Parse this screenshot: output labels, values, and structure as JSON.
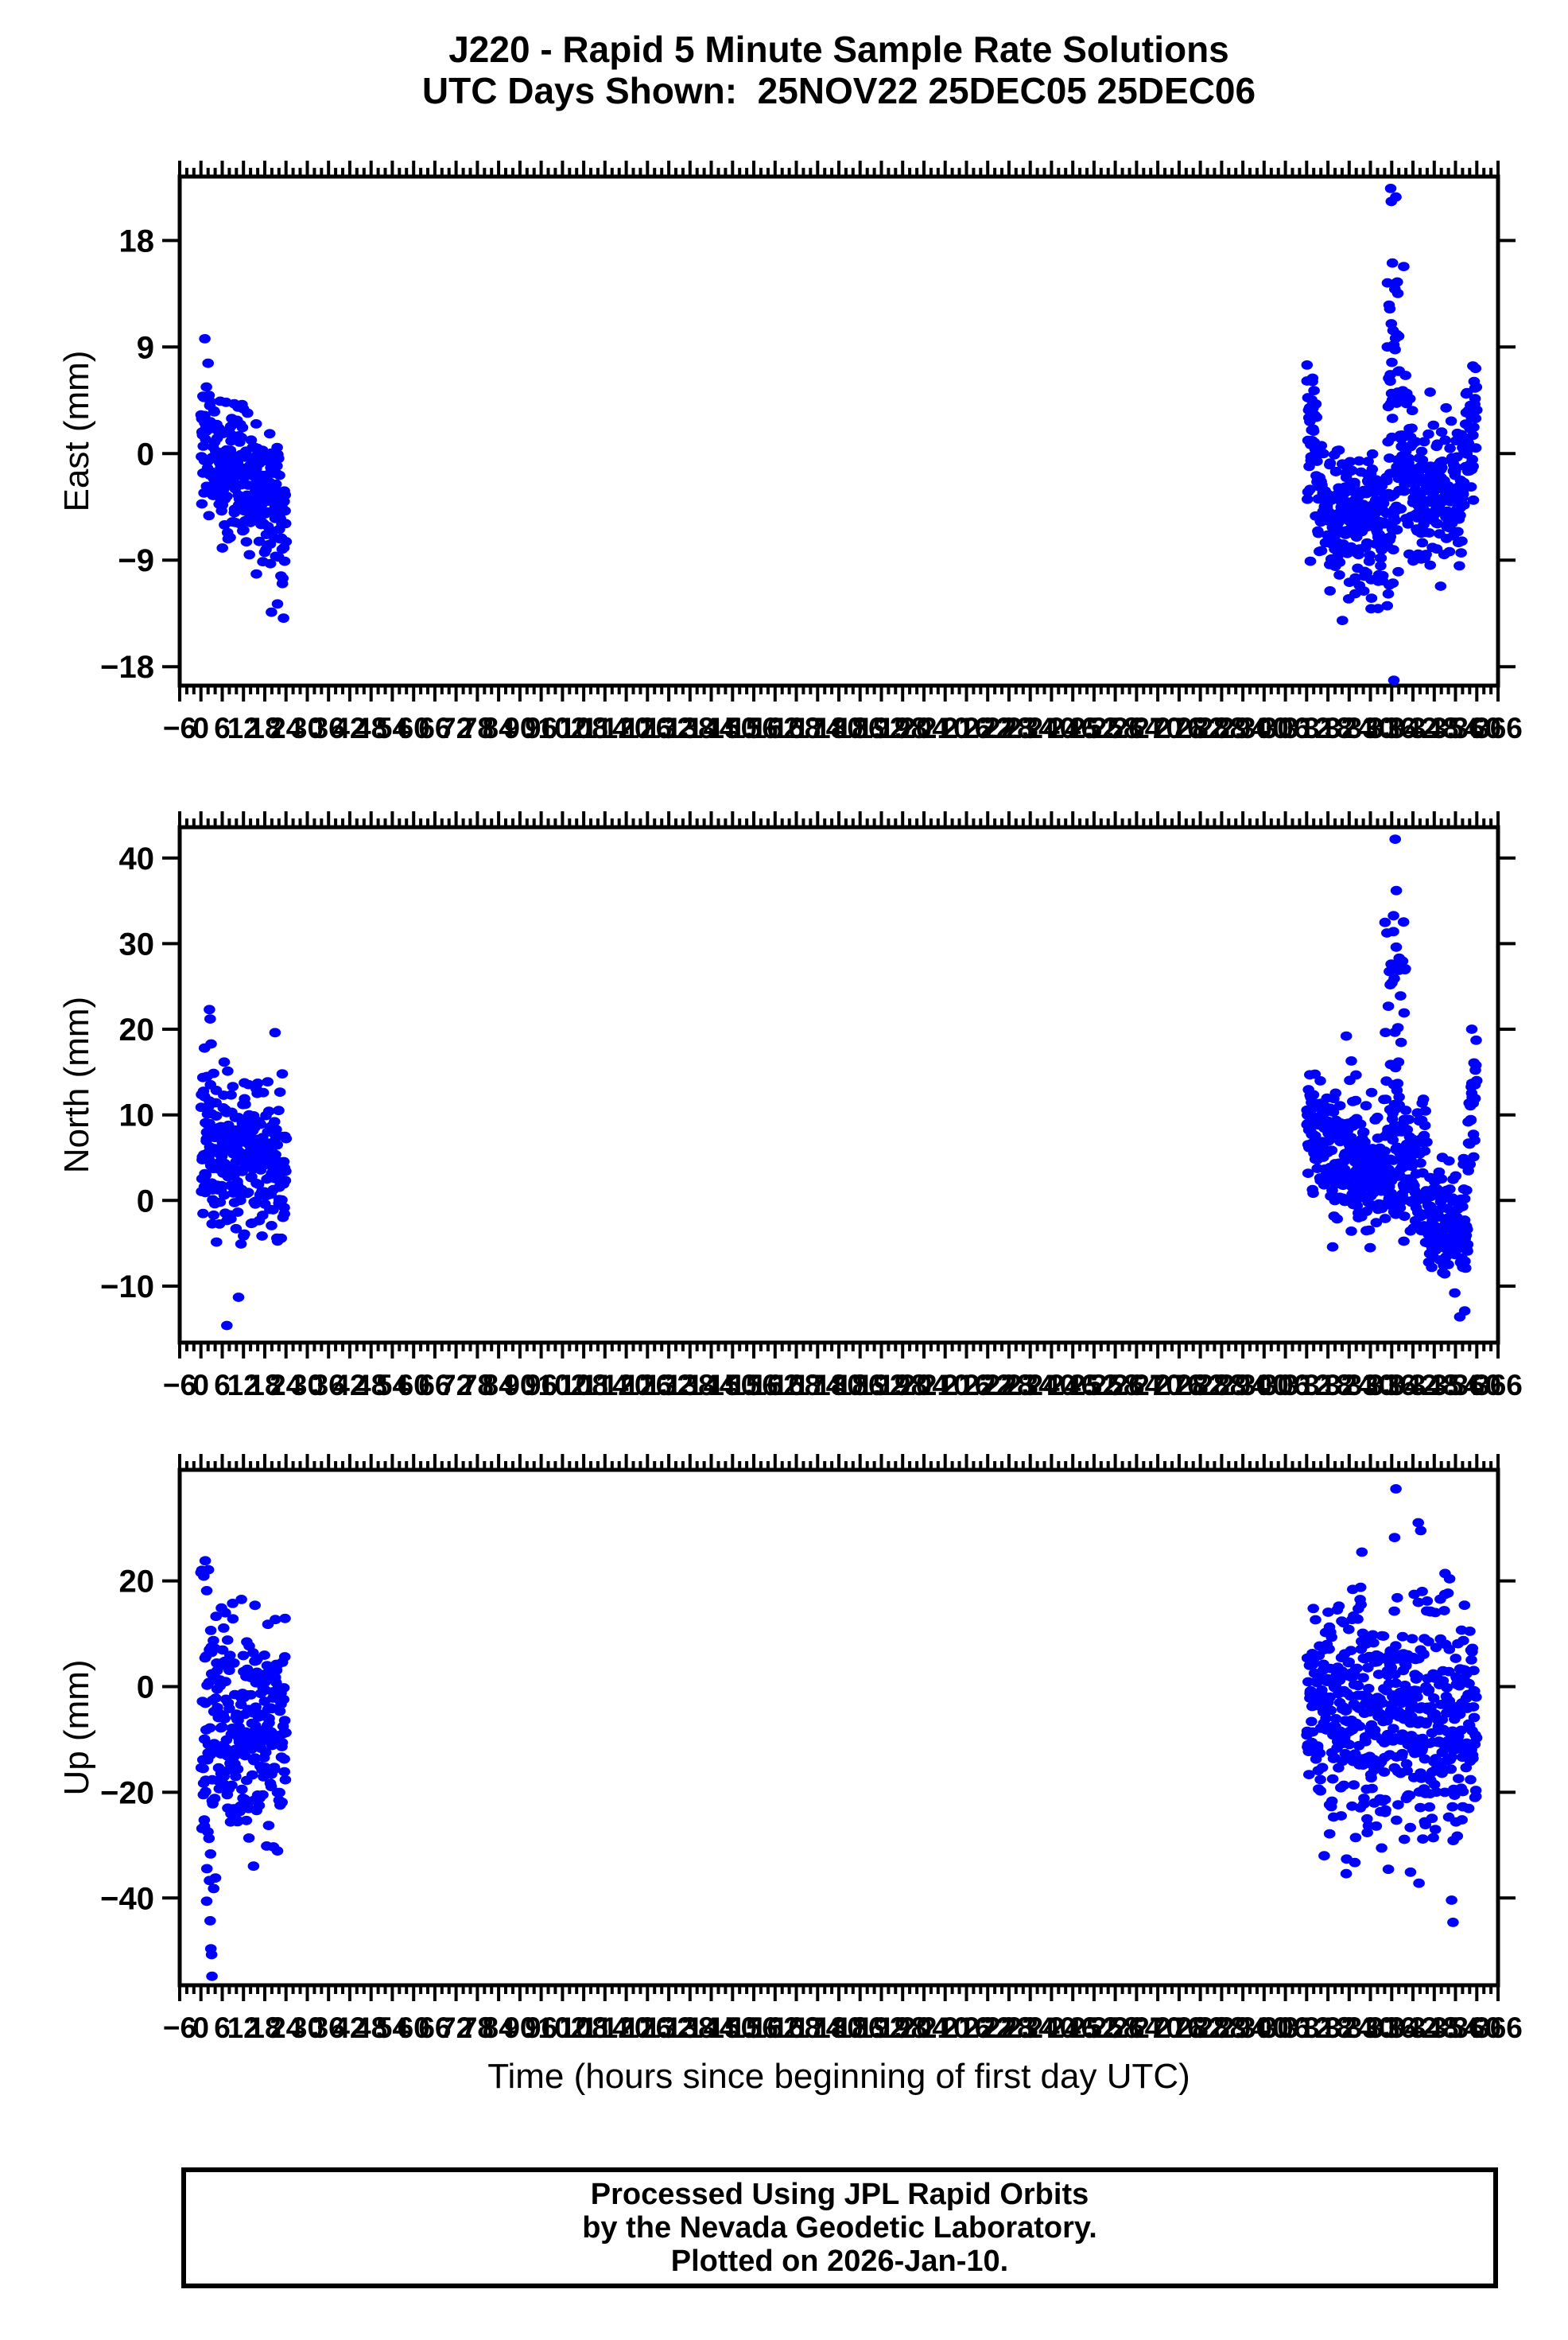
{
  "header": {
    "title_line1": "J220 - Rapid 5 Minute Sample Rate Solutions",
    "title_line2": "UTC Days Shown:  25NOV22 25DEC05 25DEC06"
  },
  "footer": {
    "line1": "Processed Using JPL Rapid Orbits",
    "line2": "by the Nevada Geodetic Laboratory.",
    "line3": "Plotted on 2026-Jan-10."
  },
  "chart_data": {
    "type": "scatter",
    "title": "J220 - Rapid 5 Minute Sample Rate Solutions",
    "subtitle": "UTC Days Shown:  25NOV22 25DEC05 25DEC06",
    "grid": false,
    "legend": "none",
    "x_axis": {
      "title": "Time (hours since beginning of first day UTC)",
      "min": -6,
      "max": 366,
      "label_step": 6,
      "major_tick_step": 6,
      "minor_tick_step": 2
    },
    "marker": {
      "color": "#0000ff",
      "rx": 7.3,
      "ry": 5.9
    },
    "sample_rate_per_hour": 12,
    "day_windows_hours": [
      [
        0,
        24
      ],
      [
        312,
        336
      ],
      [
        336,
        360
      ]
    ],
    "plots": [
      {
        "id": "east",
        "ylabel": "East (mm)",
        "ylim": [
          -19.6,
          23.4
        ],
        "yticks": [
          -18,
          -9,
          0,
          9,
          18
        ],
        "segments": [
          {
            "t0": 0,
            "t1": 24,
            "rate": 12,
            "mean0": 1.5,
            "mean1": -5.5,
            "std": 2.8
          },
          {
            "t0": 312,
            "t1": 315,
            "rate": 12,
            "mean0": 2.0,
            "mean1": 0.0,
            "std": 3.2
          },
          {
            "t0": 315,
            "t1": 334,
            "rate": 12,
            "mean0": -4.5,
            "mean1": -5.5,
            "std": 2.9
          },
          {
            "t0": 334.5,
            "t1": 338,
            "rate": 10,
            "mean0": 6,
            "mean1": 13,
            "std": 5.0
          },
          {
            "t0": 334.5,
            "t1": 338,
            "rate": 8,
            "mean0": -6,
            "mean1": -4,
            "std": 3.0
          },
          {
            "t0": 338,
            "t1": 342,
            "rate": 12,
            "mean0": 1,
            "mean1": -2,
            "std": 3.4
          },
          {
            "t0": 342,
            "t1": 356,
            "rate": 12,
            "mean0": -3.8,
            "mean1": -3.2,
            "std": 2.8
          },
          {
            "t0": 356,
            "t1": 360,
            "rate": 12,
            "mean0": 0,
            "mean1": 2.5,
            "std": 2.6
          }
        ],
        "outliers": [
          [
            1.1,
            9.7
          ],
          [
            19.9,
            -13.4
          ],
          [
            21.6,
            -12.7
          ],
          [
            23.3,
            -13.9
          ],
          [
            322.1,
            -14.1
          ],
          [
            318.6,
            -11.6
          ],
          [
            330.2,
            -13.1
          ],
          [
            335.7,
            22.4
          ],
          [
            335.9,
            21.3
          ],
          [
            336.2,
            16.1
          ],
          [
            339.4,
            15.8
          ],
          [
            336.6,
            -19.2
          ],
          [
            349.8,
            -11.2
          ],
          [
            358.9,
            7.4
          ]
        ]
      },
      {
        "id": "north",
        "ylabel": "North (mm)",
        "ylim": [
          -16.6,
          43.6
        ],
        "yticks": [
          -10,
          0,
          10,
          20,
          30,
          40
        ],
        "segments": [
          {
            "t0": 0,
            "t1": 24,
            "rate": 12,
            "mean0": 6.5,
            "mean1": 3.5,
            "std": 4.3
          },
          {
            "t0": 312,
            "t1": 318,
            "rate": 12,
            "mean0": 8.5,
            "mean1": 6.5,
            "std": 3.6
          },
          {
            "t0": 318,
            "t1": 336,
            "rate": 12,
            "mean0": 5.5,
            "mean1": 3.0,
            "std": 3.6
          },
          {
            "t0": 334,
            "t1": 340,
            "rate": 5,
            "mean0": 18,
            "mean1": 28,
            "std": 6.5
          },
          {
            "t0": 336,
            "t1": 346,
            "rate": 12,
            "mean0": 6,
            "mean1": 1,
            "std": 4.2
          },
          {
            "t0": 346,
            "t1": 357.5,
            "rate": 12,
            "mean0": -2.2,
            "mean1": -3.5,
            "std": 3.1
          },
          {
            "t0": 357.5,
            "t1": 360,
            "rate": 10,
            "mean0": 8,
            "mean1": 14,
            "std": 3.5
          }
        ],
        "outliers": [
          [
            2.4,
            22.3
          ],
          [
            2.6,
            21.2
          ],
          [
            1.0,
            17.8
          ],
          [
            7.3,
            -14.6
          ],
          [
            10.6,
            -11.3
          ],
          [
            20.9,
            19.6
          ],
          [
            323.2,
            19.2
          ],
          [
            324.6,
            16.3
          ],
          [
            337.0,
            42.2
          ],
          [
            337.3,
            36.2
          ],
          [
            336.5,
            31.4
          ],
          [
            338.1,
            28.3
          ],
          [
            335.6,
            25.2
          ],
          [
            355.2,
            -13.6
          ],
          [
            356.6,
            -12.9
          ],
          [
            358.6,
            20.0
          ],
          [
            353.8,
            -10.8
          ]
        ]
      },
      {
        "id": "up",
        "ylabel": "Up (mm)",
        "ylim": [
          -56.5,
          41.0
        ],
        "yticks": [
          -40,
          -20,
          0,
          20
        ],
        "segments": [
          {
            "t0": 0,
            "t1": 3.5,
            "rate": 12,
            "mean0": -8,
            "mean1": -12,
            "std": 16
          },
          {
            "t0": 3.5,
            "t1": 24,
            "rate": 12,
            "mean0": -7,
            "mean1": -9,
            "std": 10.5
          },
          {
            "t0": 312,
            "t1": 336,
            "rate": 12,
            "mean0": -4.5,
            "mean1": -6,
            "std": 11.5
          },
          {
            "t0": 336,
            "t1": 360,
            "rate": 12,
            "mean0": -5,
            "mean1": -7,
            "std": 11.5
          }
        ],
        "outliers": [
          [
            1.2,
            23.8
          ],
          [
            2.1,
            22.1
          ],
          [
            0.8,
            20.9
          ],
          [
            1.6,
            -40.6
          ],
          [
            2.6,
            -44.3
          ],
          [
            2.8,
            -49.6
          ],
          [
            3.0,
            -50.7
          ],
          [
            3.1,
            -54.8
          ],
          [
            4.1,
            -36.2
          ],
          [
            337.2,
            37.4
          ],
          [
            336.8,
            28.2
          ],
          [
            343.5,
            31.0
          ],
          [
            344.2,
            29.5
          ],
          [
            341.3,
            -35.1
          ],
          [
            352.9,
            -40.4
          ],
          [
            353.3,
            -44.6
          ]
        ]
      }
    ]
  }
}
